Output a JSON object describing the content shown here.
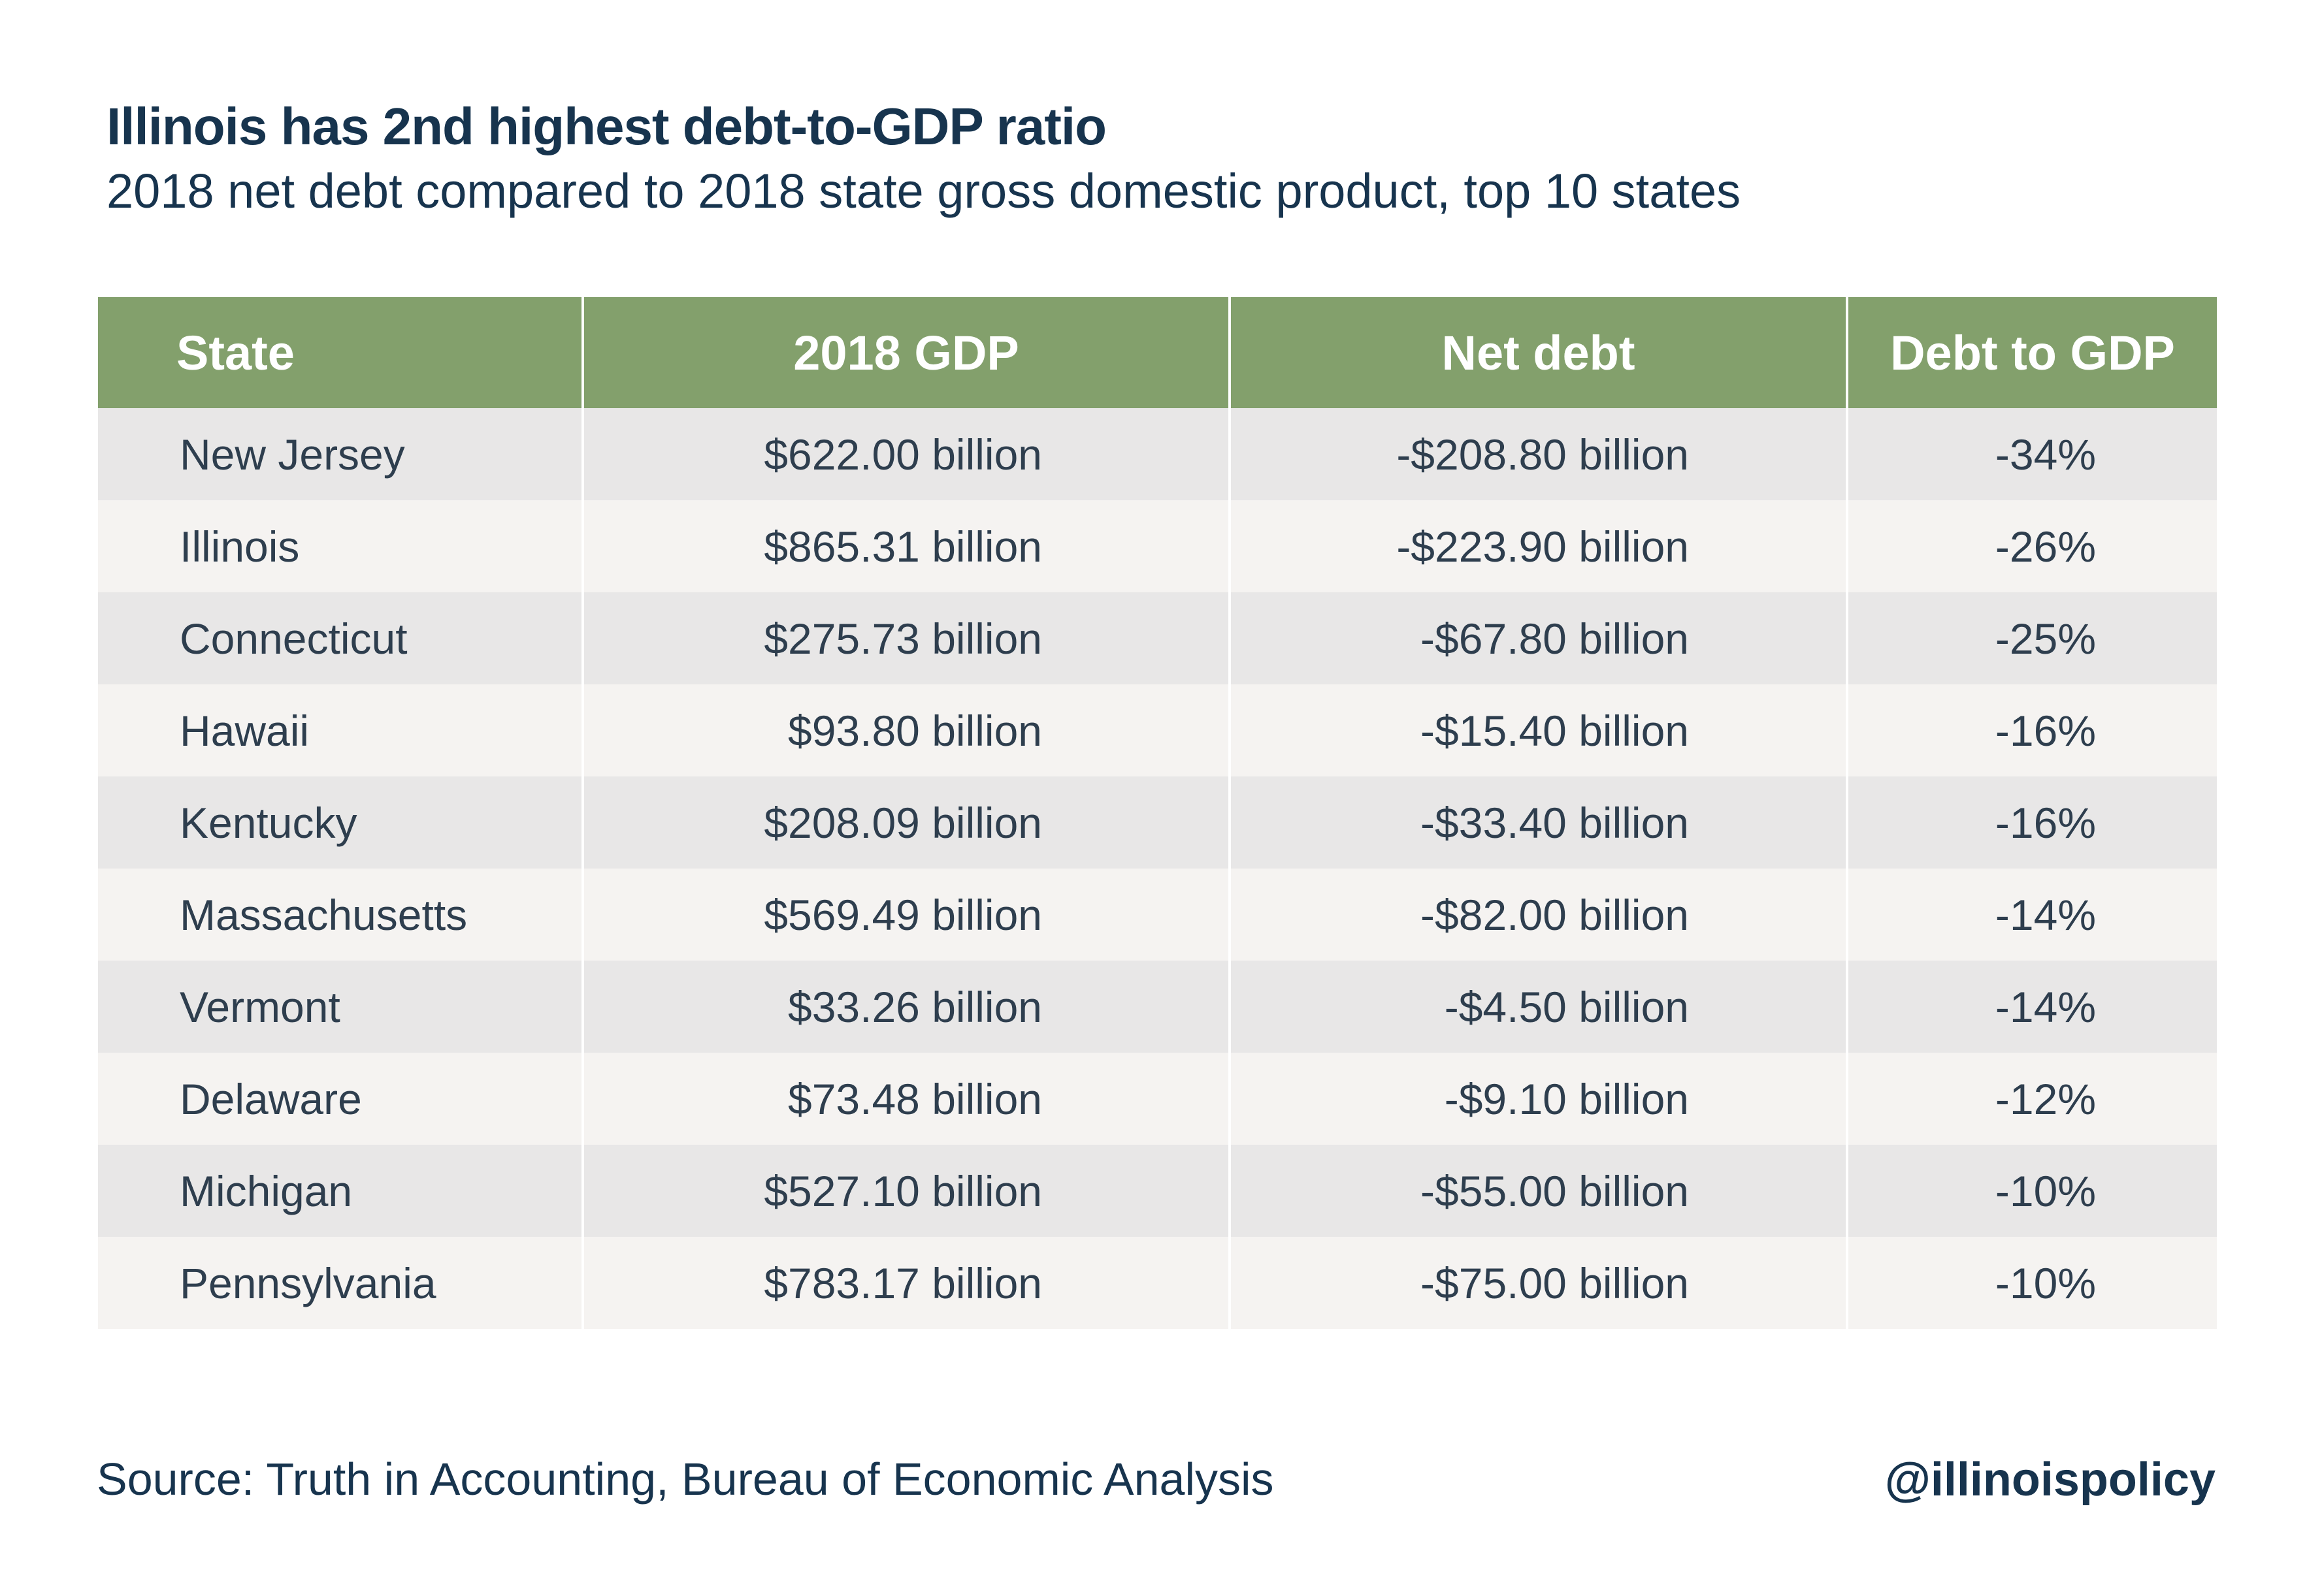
{
  "title": "Illinois has 2nd highest debt-to-GDP ratio",
  "subtitle": "2018 net debt compared to 2018 state gross domestic product, top 10 states",
  "source": "Source: Truth in Accounting, Bureau of Economic Analysis",
  "handle": "@illinoispolicy",
  "colors": {
    "header_bg": "#83a06c",
    "row_odd": "#e8e7e7",
    "row_even": "#f5f3f1",
    "title_text": "#17344e"
  },
  "chart_data": {
    "type": "table",
    "title": "Illinois has 2nd highest debt-to-GDP ratio",
    "subtitle": "2018 net debt compared to 2018 state gross domestic product, top 10 states",
    "columns": [
      "State",
      "2018 GDP",
      "Net debt",
      "Debt to GDP"
    ],
    "rows": [
      [
        "New Jersey",
        "$622.00 billion",
        "-$208.80 billion",
        "-34%"
      ],
      [
        "Illinois",
        "$865.31 billion",
        "-$223.90 billion",
        "-26%"
      ],
      [
        "Connecticut",
        "$275.73 billion",
        "-$67.80 billion",
        "-25%"
      ],
      [
        "Hawaii",
        "$93.80 billion",
        "-$15.40 billion",
        "-16%"
      ],
      [
        "Kentucky",
        "$208.09 billion",
        "-$33.40 billion",
        "-16%"
      ],
      [
        "Massachusetts",
        "$569.49 billion",
        "-$82.00 billion",
        "-14%"
      ],
      [
        "Vermont",
        "$33.26 billion",
        "-$4.50 billion",
        "-14%"
      ],
      [
        "Delaware",
        "$73.48 billion",
        "-$9.10 billion",
        "-12%"
      ],
      [
        "Michigan",
        "$527.10 billion",
        "-$55.00 billion",
        "-10%"
      ],
      [
        "Pennsylvania",
        "$783.17 billion",
        "-$75.00 billion",
        "-10%"
      ]
    ]
  }
}
